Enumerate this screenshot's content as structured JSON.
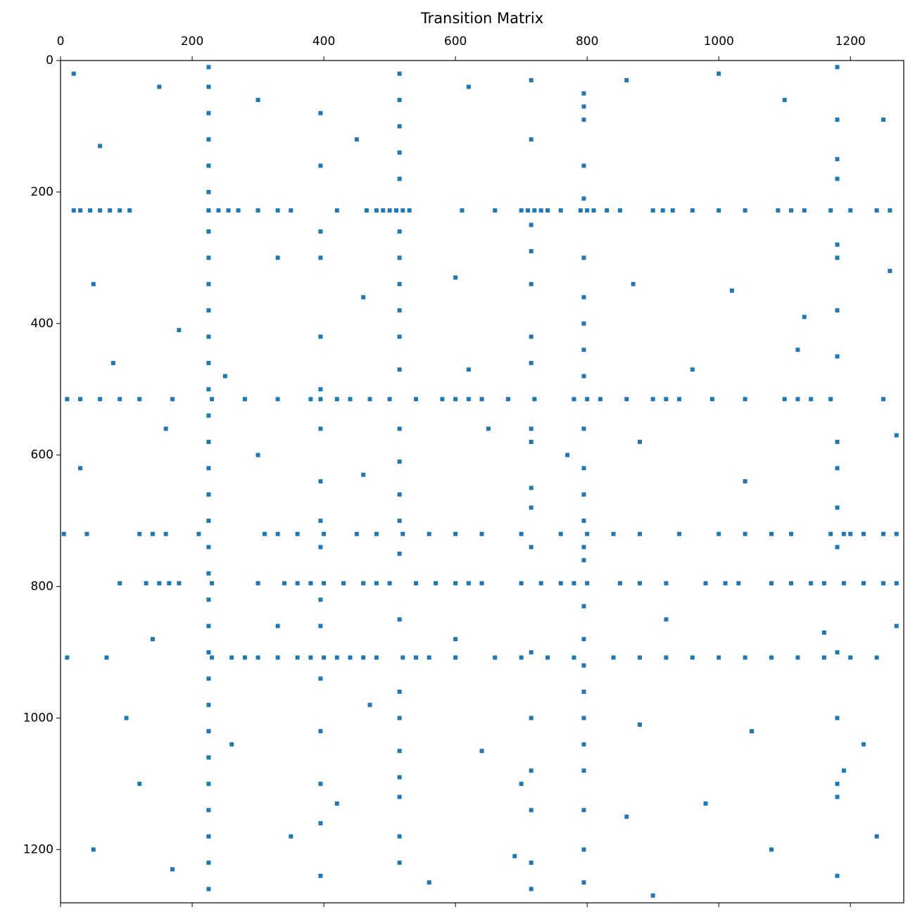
{
  "chart_data": {
    "type": "scatter",
    "title": "Transition Matrix",
    "color": "#1f77b4",
    "marker": "square",
    "xlim": [
      0,
      1281
    ],
    "ylim": [
      1281,
      0
    ],
    "xticks": [
      0,
      200,
      400,
      600,
      800,
      1000,
      1200
    ],
    "yticks": [
      0,
      200,
      400,
      600,
      800,
      1000,
      1200
    ],
    "x": [
      20,
      30,
      45,
      60,
      75,
      90,
      105,
      225,
      240,
      255,
      270,
      300,
      330,
      350,
      420,
      465,
      480,
      490,
      500,
      510,
      520,
      530,
      610,
      660,
      700,
      710,
      720,
      730,
      740,
      760,
      790,
      800,
      810,
      830,
      850,
      900,
      915,
      930,
      960,
      1000,
      1040,
      1090,
      1110,
      1130,
      1170,
      1200,
      1240,
      1260,
      225,
      225,
      225,
      225,
      225,
      225,
      225,
      225,
      225,
      225,
      225,
      225,
      225,
      225,
      225,
      225,
      225,
      225,
      225,
      225,
      225,
      225,
      225,
      225,
      225,
      225,
      225,
      225,
      225,
      225,
      225,
      225,
      10,
      30,
      60,
      90,
      120,
      170,
      230,
      280,
      330,
      380,
      395,
      420,
      440,
      470,
      500,
      540,
      580,
      600,
      620,
      640,
      680,
      720,
      780,
      800,
      820,
      860,
      900,
      920,
      940,
      990,
      1040,
      1100,
      1120,
      1140,
      1170,
      1250,
      90,
      130,
      150,
      165,
      180,
      230,
      300,
      340,
      360,
      380,
      400,
      430,
      460,
      480,
      500,
      540,
      570,
      600,
      620,
      640,
      700,
      730,
      760,
      780,
      800,
      850,
      880,
      920,
      980,
      1010,
      1030,
      1080,
      1110,
      1140,
      1160,
      1190,
      1220,
      1250,
      1270,
      5,
      40,
      120,
      140,
      160,
      210,
      310,
      330,
      360,
      400,
      450,
      480,
      520,
      560,
      600,
      640,
      700,
      760,
      800,
      840,
      880,
      940,
      1000,
      1040,
      1080,
      1110,
      1170,
      1190,
      1200,
      1220,
      1250,
      1270,
      10,
      70,
      230,
      260,
      280,
      300,
      330,
      360,
      380,
      400,
      420,
      440,
      460,
      480,
      520,
      540,
      560,
      600,
      660,
      700,
      740,
      780,
      840,
      880,
      920,
      960,
      1000,
      1040,
      1080,
      1120,
      1160,
      1200,
      1240,
      515,
      515,
      515,
      515,
      515,
      515,
      515,
      515,
      515,
      515,
      515,
      515,
      515,
      515,
      515,
      515,
      515,
      515,
      515,
      515,
      515,
      515,
      515,
      515,
      795,
      795,
      795,
      795,
      795,
      795,
      795,
      795,
      795,
      795,
      795,
      795,
      795,
      795,
      795,
      795,
      795,
      795,
      795,
      795,
      795,
      795,
      795,
      795,
      795,
      795,
      715,
      715,
      715,
      715,
      715,
      715,
      715,
      715,
      715,
      715,
      715,
      715,
      715,
      715,
      715,
      715,
      715,
      715,
      1180,
      1180,
      1180,
      1180,
      1180,
      1180,
      1180,
      1180,
      1180,
      1180,
      1180,
      1180,
      1180,
      1180,
      1180,
      1180,
      1180,
      395,
      395,
      395,
      395,
      395,
      395,
      395,
      395,
      395,
      395,
      395,
      395,
      395,
      395,
      395,
      395,
      395,
      20,
      60,
      150,
      300,
      450,
      620,
      860,
      1000,
      1100,
      1250,
      50,
      180,
      330,
      460,
      600,
      870,
      1020,
      1130,
      1260,
      30,
      160,
      300,
      460,
      650,
      880,
      1040,
      1270,
      100,
      260,
      470,
      640,
      880,
      1050,
      1220,
      50,
      170,
      350,
      560,
      690,
      900,
      1080,
      1240,
      140,
      330,
      600,
      920,
      1160,
      1270,
      80,
      250,
      620,
      960,
      1120,
      1190,
      700,
      420,
      120,
      980,
      860,
      770
    ],
    "values": [
      228,
      228,
      228,
      228,
      228,
      228,
      228,
      228,
      228,
      228,
      228,
      228,
      228,
      228,
      228,
      228,
      228,
      228,
      228,
      228,
      228,
      228,
      228,
      228,
      228,
      228,
      228,
      228,
      228,
      228,
      228,
      228,
      228,
      228,
      228,
      228,
      228,
      228,
      228,
      228,
      228,
      228,
      228,
      228,
      228,
      228,
      228,
      228,
      10,
      40,
      80,
      120,
      160,
      200,
      260,
      300,
      340,
      380,
      420,
      460,
      500,
      540,
      580,
      620,
      660,
      700,
      740,
      780,
      820,
      860,
      900,
      940,
      980,
      1020,
      1060,
      1100,
      1140,
      1180,
      1220,
      1260,
      515,
      515,
      515,
      515,
      515,
      515,
      515,
      515,
      515,
      515,
      515,
      515,
      515,
      515,
      515,
      515,
      515,
      515,
      515,
      515,
      515,
      515,
      515,
      515,
      515,
      515,
      515,
      515,
      515,
      515,
      515,
      515,
      515,
      515,
      515,
      515,
      795,
      795,
      795,
      795,
      795,
      795,
      795,
      795,
      795,
      795,
      795,
      795,
      795,
      795,
      795,
      795,
      795,
      795,
      795,
      795,
      795,
      795,
      795,
      795,
      795,
      795,
      795,
      795,
      795,
      795,
      795,
      795,
      795,
      795,
      795,
      795,
      795,
      795,
      795,
      720,
      720,
      720,
      720,
      720,
      720,
      720,
      720,
      720,
      720,
      720,
      720,
      720,
      720,
      720,
      720,
      720,
      720,
      720,
      720,
      720,
      720,
      720,
      720,
      720,
      720,
      720,
      720,
      720,
      720,
      720,
      720,
      908,
      908,
      908,
      908,
      908,
      908,
      908,
      908,
      908,
      908,
      908,
      908,
      908,
      908,
      908,
      908,
      908,
      908,
      908,
      908,
      908,
      908,
      908,
      908,
      908,
      908,
      908,
      908,
      908,
      908,
      908,
      908,
      908,
      20,
      60,
      100,
      140,
      180,
      260,
      300,
      340,
      380,
      420,
      470,
      560,
      610,
      660,
      700,
      750,
      850,
      960,
      1000,
      1050,
      1090,
      1120,
      1180,
      1220,
      50,
      70,
      90,
      160,
      210,
      300,
      360,
      400,
      440,
      480,
      560,
      620,
      660,
      700,
      740,
      760,
      830,
      880,
      920,
      960,
      1000,
      1040,
      1080,
      1140,
      1200,
      1250,
      30,
      120,
      250,
      290,
      340,
      420,
      460,
      560,
      580,
      650,
      680,
      740,
      900,
      1000,
      1080,
      1140,
      1220,
      1260,
      10,
      90,
      150,
      180,
      280,
      300,
      380,
      450,
      580,
      620,
      680,
      740,
      900,
      1000,
      1100,
      1120,
      1240,
      80,
      160,
      260,
      300,
      420,
      500,
      560,
      640,
      700,
      740,
      820,
      860,
      940,
      1020,
      1100,
      1160,
      1240,
      20,
      130,
      40,
      60,
      120,
      40,
      30,
      20,
      60,
      90,
      340,
      410,
      300,
      360,
      330,
      340,
      350,
      390,
      320,
      620,
      560,
      600,
      630,
      560,
      580,
      640,
      570,
      1000,
      1040,
      980,
      1050,
      1010,
      1020,
      1040,
      1200,
      1230,
      1180,
      1250,
      1210,
      1270,
      1200,
      1180,
      880,
      860,
      880,
      850,
      870,
      860,
      460,
      480,
      470,
      470,
      440,
      1080,
      1100,
      1130,
      1100,
      1130,
      1150,
      600
    ]
  }
}
